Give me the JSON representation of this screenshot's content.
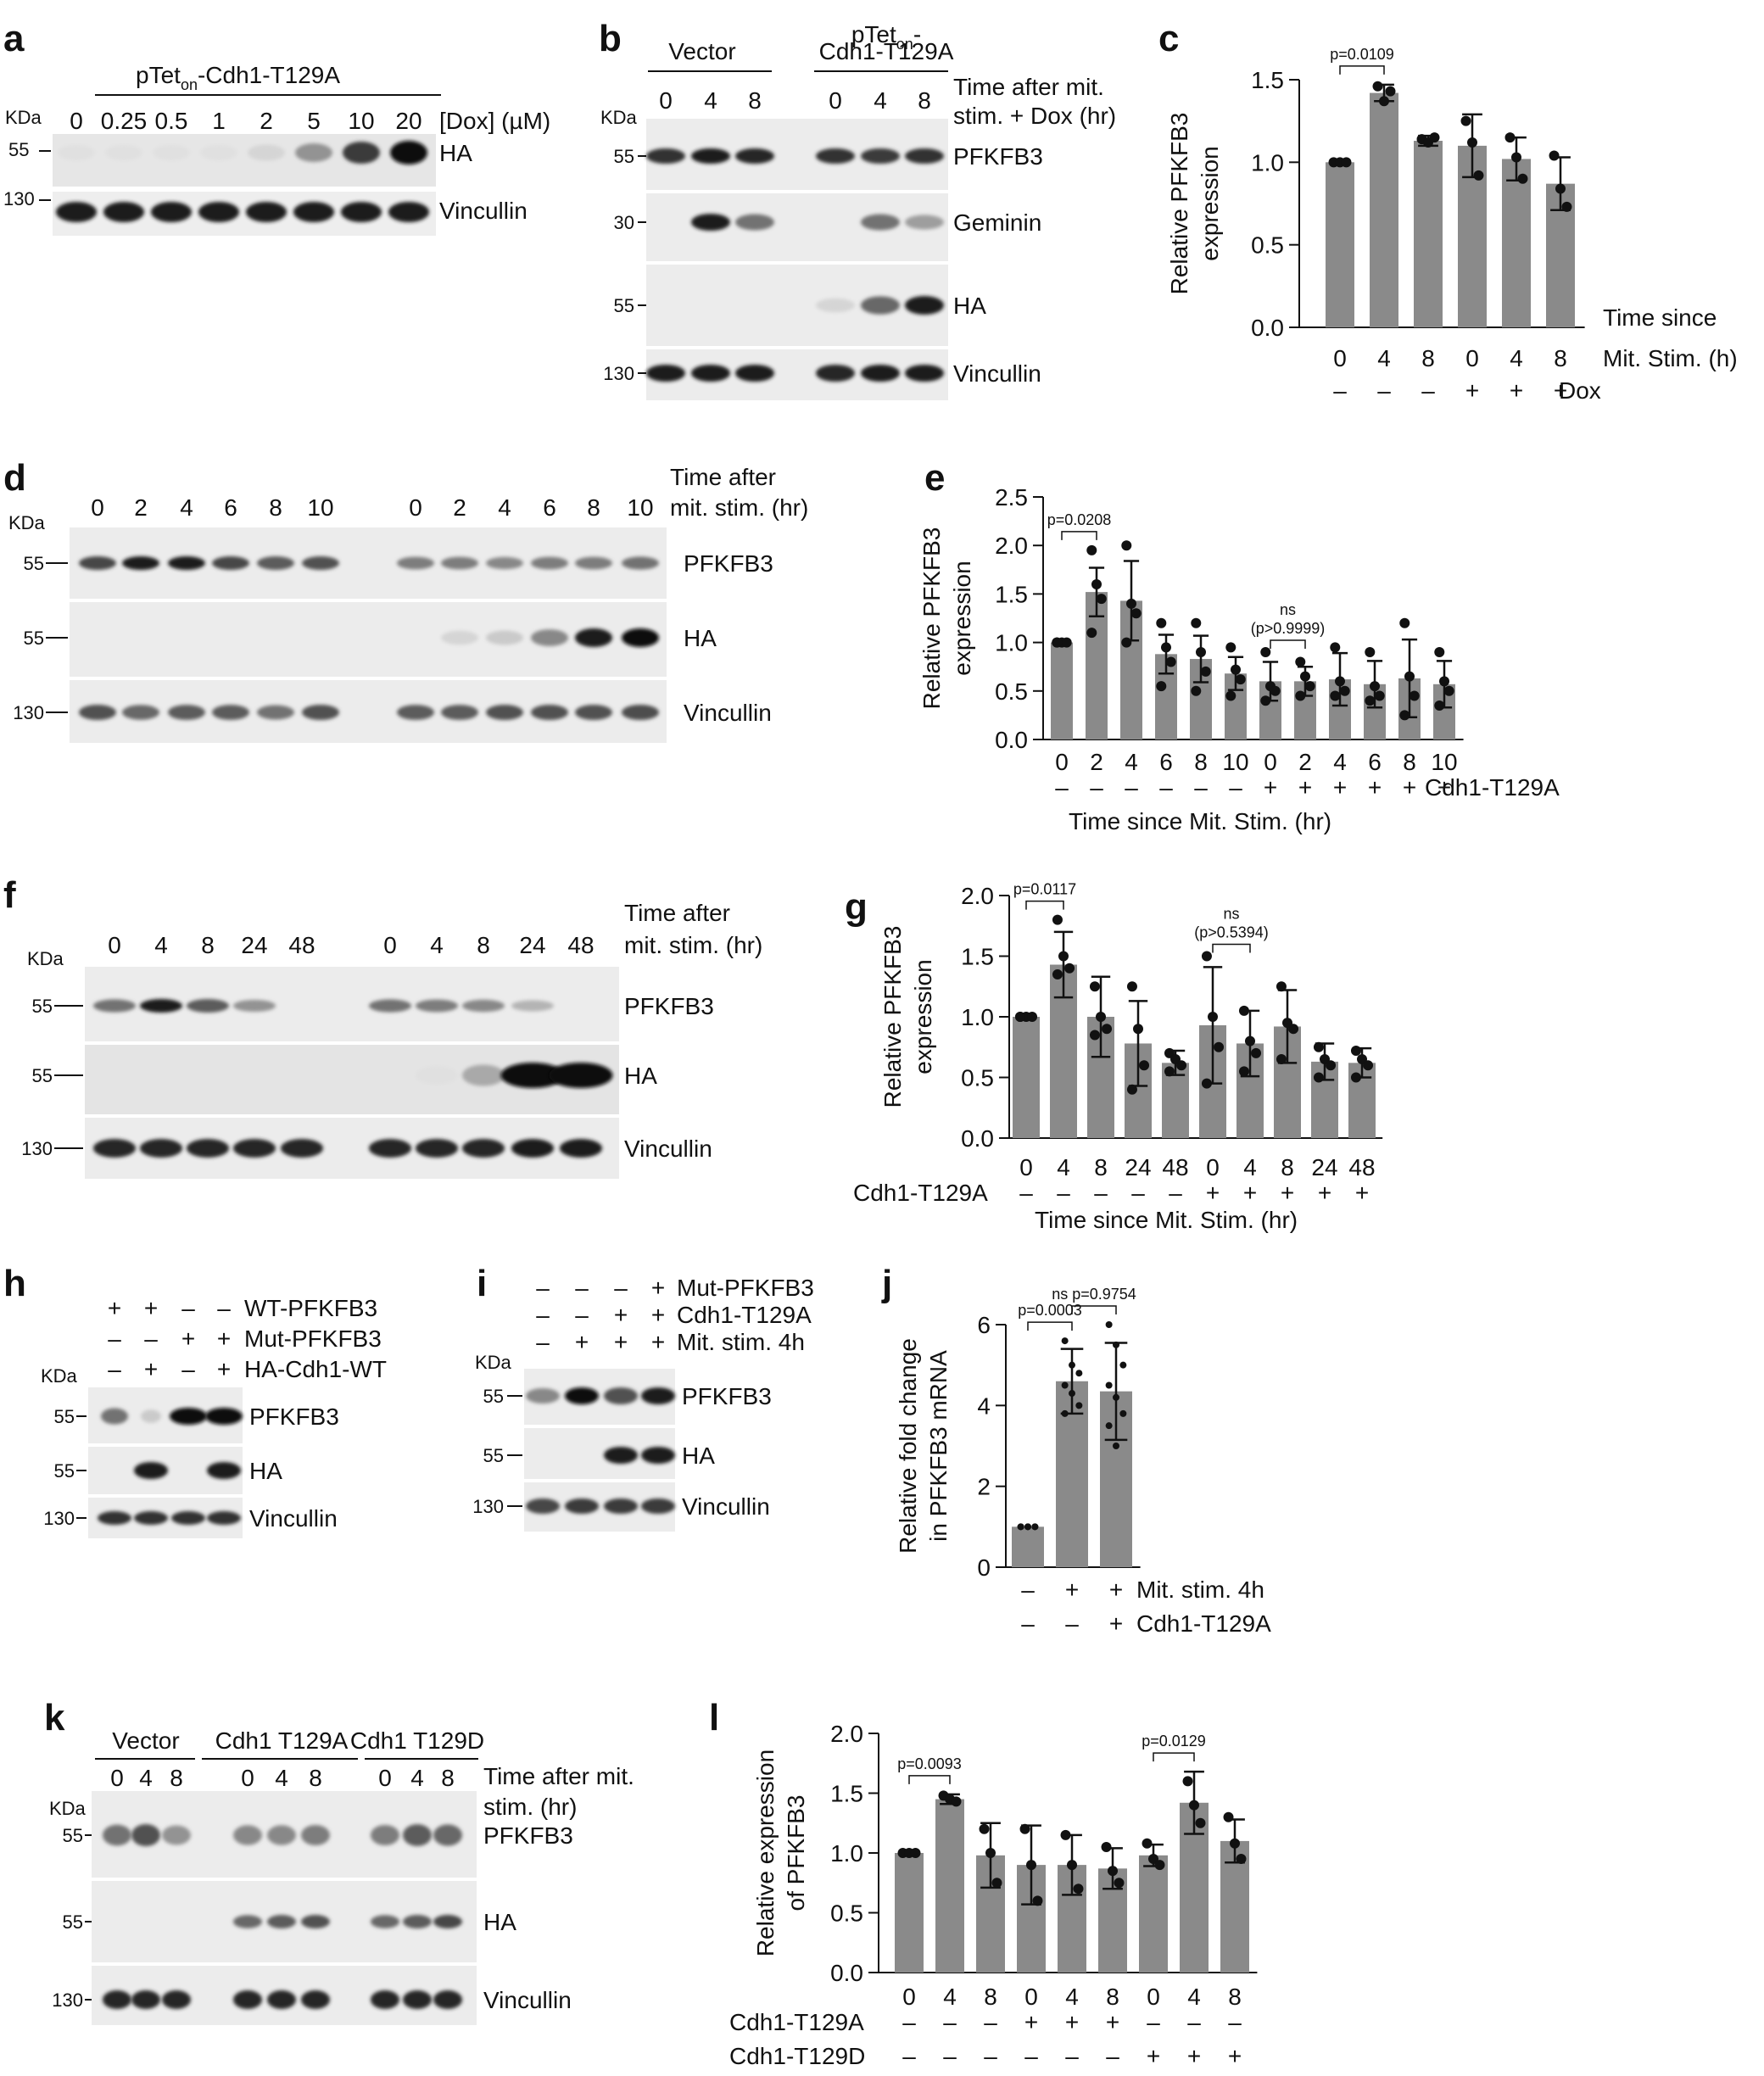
{
  "panels": {
    "a": {
      "label": "a",
      "header": "pTet",
      "header_sub": "on",
      "header_rest": "-Cdh1-T129A",
      "kda": "KDa",
      "doses": [
        "0",
        "0.25",
        "0.5",
        "1",
        "2",
        "5",
        "10",
        "20"
      ],
      "dose_unit": "[Dox] (µM)",
      "mw": [
        "55",
        "130"
      ],
      "bands": [
        "HA",
        "Vincullin"
      ],
      "ha_levels": [
        0.05,
        0.05,
        0.05,
        0.05,
        0.1,
        0.4,
        0.8,
        1.0
      ]
    },
    "b": {
      "label": "b",
      "group1": "Vector",
      "group2_line1": "pTet",
      "group2_sub": "on",
      "group2_dash": "-",
      "group2_line2": "Cdh1-T129A",
      "times": [
        "0",
        "4",
        "8",
        "0",
        "4",
        "8"
      ],
      "time_label_1": "Time after mit.",
      "time_label_2": "stim. + Dox (hr)",
      "kda": "KDa",
      "mw": [
        "55",
        "30",
        "55",
        "130"
      ],
      "bands": [
        "PFKFB3",
        "Geminin",
        "HA",
        "Vincullin"
      ]
    },
    "d": {
      "label": "d",
      "kda": "KDa",
      "times": [
        "0",
        "2",
        "4",
        "6",
        "8",
        "10",
        "0",
        "2",
        "4",
        "6",
        "8",
        "10"
      ],
      "time_label_1": "Time after",
      "time_label_2": "mit. stim. (hr)",
      "mw": [
        "55",
        "55",
        "130"
      ],
      "bands": [
        "PFKFB3",
        "HA",
        "Vincullin"
      ]
    },
    "f": {
      "label": "f",
      "kda": "KDa",
      "times": [
        "0",
        "4",
        "8",
        "24",
        "48",
        "0",
        "4",
        "8",
        "24",
        "48"
      ],
      "time_label_1": "Time after",
      "time_label_2": "mit. stim. (hr)",
      "mw": [
        "55",
        "55",
        "130"
      ],
      "bands": [
        "PFKFB3",
        "HA",
        "Vincullin"
      ]
    },
    "h": {
      "label": "h",
      "kda": "KDa",
      "rows": [
        {
          "name": "WT-PFKFB3",
          "signs": [
            "+",
            "+",
            "–",
            "–"
          ]
        },
        {
          "name": "Mut-PFKFB3",
          "signs": [
            "–",
            "–",
            "+",
            "+"
          ]
        },
        {
          "name": "HA-Cdh1-WT",
          "signs": [
            "–",
            "+",
            "–",
            "+"
          ]
        }
      ],
      "mw": [
        "55",
        "55",
        "130"
      ],
      "bands": [
        "PFKFB3",
        "HA",
        "Vincullin"
      ]
    },
    "i": {
      "label": "i",
      "kda": "KDa",
      "rows": [
        {
          "name": "Mut-PFKFB3",
          "signs": [
            "–",
            "–",
            "–",
            "+"
          ]
        },
        {
          "name": "Cdh1-T129A",
          "signs": [
            "–",
            "–",
            "+",
            "+"
          ]
        },
        {
          "name": "Mit. stim. 4h",
          "signs": [
            "–",
            "+",
            "+",
            "+"
          ]
        }
      ],
      "mw": [
        "55",
        "55",
        "130"
      ],
      "bands": [
        "PFKFB3",
        "HA",
        "Vincullin"
      ]
    },
    "k": {
      "label": "k",
      "kda": "KDa",
      "groups": [
        "Vector",
        "Cdh1 T129A",
        "Cdh1 T129D"
      ],
      "times": [
        "0",
        "4",
        "8",
        "0",
        "4",
        "8",
        "0",
        "4",
        "8"
      ],
      "time_label_1": "Time after mit.",
      "time_label_2": "stim. (hr)",
      "mw": [
        "55",
        "55",
        "130"
      ],
      "bands": [
        "PFKFB3",
        "HA",
        "Vincullin"
      ]
    }
  },
  "chart_data": [
    {
      "id": "c",
      "label": "c",
      "type": "bar",
      "ylabel_1": "Relative PFKFB3",
      "ylabel_2": "expression",
      "ylim": [
        0,
        1.5
      ],
      "yticks": [
        "0.0",
        "0.5",
        "1.0",
        "1.5"
      ],
      "categories": [
        "0",
        "4",
        "8",
        "0",
        "4",
        "8"
      ],
      "values": [
        1.0,
        1.42,
        1.13,
        1.1,
        1.02,
        0.87
      ],
      "errors": [
        0.0,
        0.05,
        0.03,
        0.19,
        0.13,
        0.16
      ],
      "points": [
        [
          1.0,
          1.0,
          1.0
        ],
        [
          1.46,
          1.37,
          1.43
        ],
        [
          1.14,
          1.12,
          1.15
        ],
        [
          1.25,
          1.12,
          0.92
        ],
        [
          1.15,
          1.03,
          0.9
        ],
        [
          1.04,
          0.84,
          0.73
        ]
      ],
      "xlabel_1": "Time since",
      "xlabel_2": "Mit. Stim. (h)",
      "row_signs": [
        "–",
        "–",
        "–",
        "+",
        "+",
        "+"
      ],
      "row_label": "Dox",
      "annotations": [
        {
          "text": "p=0.0109",
          "from": 0,
          "to": 1
        }
      ]
    },
    {
      "id": "e",
      "label": "e",
      "type": "bar",
      "ylabel_1": "Relative PFKFB3",
      "ylabel_2": "expression",
      "ylim": [
        0,
        2.5
      ],
      "yticks": [
        "0.0",
        "0.5",
        "1.0",
        "1.5",
        "2.0",
        "2.5"
      ],
      "categories": [
        "0",
        "2",
        "4",
        "6",
        "8",
        "10",
        "0",
        "2",
        "4",
        "6",
        "8",
        "10"
      ],
      "values": [
        1.0,
        1.52,
        1.43,
        0.88,
        0.83,
        0.68,
        0.6,
        0.6,
        0.62,
        0.57,
        0.63,
        0.57
      ],
      "errors": [
        0.01,
        0.25,
        0.41,
        0.2,
        0.24,
        0.17,
        0.2,
        0.15,
        0.27,
        0.24,
        0.4,
        0.24
      ],
      "points": [
        [
          1.0,
          1.0,
          1.0,
          1.0
        ],
        [
          1.95,
          1.6,
          1.45,
          1.1
        ],
        [
          2.0,
          1.4,
          1.3,
          1.0
        ],
        [
          1.2,
          0.95,
          0.8,
          0.55
        ],
        [
          1.2,
          0.9,
          0.7,
          0.5
        ],
        [
          0.95,
          0.72,
          0.62,
          0.45
        ],
        [
          0.9,
          0.55,
          0.5,
          0.4
        ],
        [
          0.8,
          0.65,
          0.55,
          0.45
        ],
        [
          0.95,
          0.6,
          0.5,
          0.45
        ],
        [
          0.9,
          0.55,
          0.45,
          0.4
        ],
        [
          1.2,
          0.65,
          0.45,
          0.25
        ],
        [
          0.9,
          0.6,
          0.5,
          0.35
        ]
      ],
      "xlabel_1": "Time since Mit. Stim. (hr)",
      "row_signs": [
        "–",
        "–",
        "–",
        "–",
        "–",
        "–",
        "+",
        "+",
        "+",
        "+",
        "+",
        "+"
      ],
      "row_label": "Cdh1-T129A",
      "annotations": [
        {
          "text": "p=0.0208",
          "from": 0,
          "to": 1
        },
        {
          "text": "ns",
          "text2": "(p>0.9999)",
          "from": 6,
          "to": 7
        }
      ]
    },
    {
      "id": "g",
      "label": "g",
      "type": "bar",
      "ylabel_1": "Relative PFKFB3",
      "ylabel_2": "expression",
      "ylim": [
        0,
        2.0
      ],
      "yticks": [
        "0.0",
        "0.5",
        "1.0",
        "1.5",
        "2.0"
      ],
      "categories": [
        "0",
        "4",
        "8",
        "24",
        "48",
        "0",
        "4",
        "8",
        "24",
        "48"
      ],
      "values": [
        1.0,
        1.43,
        1.0,
        0.78,
        0.62,
        0.93,
        0.78,
        0.92,
        0.63,
        0.62
      ],
      "errors": [
        0.01,
        0.27,
        0.33,
        0.35,
        0.1,
        0.48,
        0.27,
        0.3,
        0.15,
        0.12
      ],
      "points": [
        [
          1.0,
          1.0,
          1.0,
          1.0
        ],
        [
          1.8,
          1.5,
          1.4,
          1.35
        ],
        [
          1.25,
          1.0,
          0.9,
          0.85
        ],
        [
          1.25,
          0.9,
          0.6,
          0.4
        ],
        [
          0.7,
          0.65,
          0.6,
          0.55
        ],
        [
          1.5,
          1.0,
          0.75,
          0.45
        ],
        [
          1.05,
          0.8,
          0.7,
          0.55
        ],
        [
          1.25,
          0.95,
          0.9,
          0.65
        ],
        [
          0.75,
          0.65,
          0.6,
          0.5
        ],
        [
          0.72,
          0.65,
          0.6,
          0.5
        ]
      ],
      "xlabel_1": "Time since Mit. Stim. (hr)",
      "row_signs": [
        "–",
        "–",
        "–",
        "–",
        "–",
        "+",
        "+",
        "+",
        "+",
        "+"
      ],
      "row_label": "Cdh1-T129A",
      "annotations": [
        {
          "text": "p=0.0117",
          "from": 0,
          "to": 1
        },
        {
          "text": "ns",
          "text2": "(p>0.5394)",
          "from": 5,
          "to": 6
        }
      ]
    },
    {
      "id": "j",
      "label": "j",
      "type": "bar",
      "ylabel_1": "Relative fold change",
      "ylabel_2": "in PFKFB3 mRNA",
      "ylim": [
        0,
        6
      ],
      "yticks": [
        "0",
        "2",
        "4",
        "6"
      ],
      "categories": [
        "",
        "",
        ""
      ],
      "values": [
        1.0,
        4.6,
        4.35
      ],
      "errors": [
        0.0,
        0.8,
        1.2
      ],
      "points": [
        [
          1.0,
          1.0,
          1.0,
          1.0,
          1.0,
          1.0
        ],
        [
          5.6,
          5.0,
          4.8,
          4.5,
          4.3,
          4.0,
          3.8
        ],
        [
          6.0,
          5.5,
          5.0,
          4.5,
          4.2,
          3.8,
          3.5,
          3.0
        ]
      ],
      "rows": [
        {
          "name": "Mit. stim. 4h",
          "signs": [
            "–",
            "+",
            "+"
          ]
        },
        {
          "name": "Cdh1-T129A",
          "signs": [
            "–",
            "–",
            "+"
          ]
        }
      ],
      "annotations": [
        {
          "text": "p=0.0003",
          "from": 0,
          "to": 1
        },
        {
          "text": "ns p=0.9754",
          "from": 1,
          "to": 2
        }
      ]
    },
    {
      "id": "l",
      "label": "l",
      "type": "bar",
      "ylabel_1": "Relative expression",
      "ylabel_2": "of PFKFB3",
      "ylim": [
        0,
        2.0
      ],
      "yticks": [
        "0.0",
        "0.5",
        "1.0",
        "1.5",
        "2.0"
      ],
      "categories": [
        "0",
        "4",
        "8",
        "0",
        "4",
        "8",
        "0",
        "4",
        "8"
      ],
      "values": [
        1.0,
        1.45,
        0.98,
        0.9,
        0.9,
        0.87,
        0.98,
        1.42,
        1.1
      ],
      "errors": [
        0.0,
        0.04,
        0.27,
        0.33,
        0.25,
        0.17,
        0.09,
        0.26,
        0.18
      ],
      "points": [
        [
          1.0,
          1.0,
          1.0
        ],
        [
          1.48,
          1.45,
          1.43
        ],
        [
          1.2,
          1.0,
          0.75
        ],
        [
          1.2,
          0.9,
          0.6
        ],
        [
          1.15,
          0.9,
          0.7
        ],
        [
          1.05,
          0.85,
          0.75
        ],
        [
          1.08,
          0.95,
          0.9
        ],
        [
          1.6,
          1.4,
          1.25
        ],
        [
          1.3,
          1.08,
          0.95
        ]
      ],
      "rows": [
        {
          "name": "Cdh1-T129A",
          "signs": [
            "–",
            "–",
            "–",
            "+",
            "+",
            "+",
            "–",
            "–",
            "–"
          ]
        },
        {
          "name": "Cdh1-T129D",
          "signs": [
            "–",
            "–",
            "–",
            "–",
            "–",
            "–",
            "+",
            "+",
            "+"
          ]
        }
      ],
      "annotations": [
        {
          "text": "p=0.0093",
          "from": 0,
          "to": 1
        },
        {
          "text": "p=0.0129",
          "from": 6,
          "to": 7
        }
      ]
    }
  ]
}
